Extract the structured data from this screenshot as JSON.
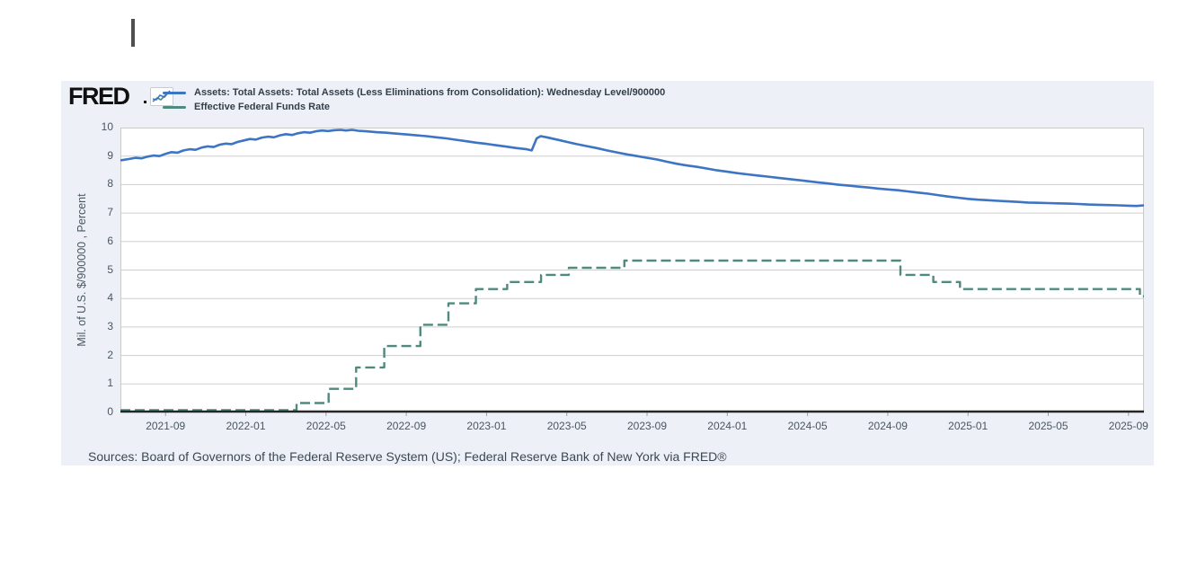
{
  "page": {
    "cursor_visible": true
  },
  "header": {
    "logo_text": "FRED",
    "spark_icon": "fred-sparkline-icon",
    "legend": [
      {
        "label": "Assets: Total Assets: Total Assets (Less Eliminations from Consolidation): Wednesday Level/900000",
        "color": "#3d74c4"
      },
      {
        "label": "Effective Federal Funds Rate",
        "color": "#4e8a7d"
      }
    ]
  },
  "footer": {
    "sources": "Sources: Board of Governors of the Federal Reserve System (US); Federal Reserve Bank of New York via FRED®"
  },
  "colors": {
    "card_background": "#edf1f7",
    "plot_background": "#ffffff",
    "gridline": "#cfcfcf",
    "plot_border": "#c9c9c9",
    "axis": "#262626",
    "assets_line": "#3d74c4",
    "effr_line": "#4e8a7d"
  },
  "chart_data": {
    "type": "line",
    "title": "",
    "xlabel": "",
    "ylabel": "Mil. of U.S. $/900000 , Percent",
    "ylim": [
      0,
      10
    ],
    "yticks": [
      0,
      1,
      2,
      3,
      4,
      5,
      6,
      7,
      8,
      9,
      10
    ],
    "grid": true,
    "legend_position": "top",
    "x_unit": "months since 2021-07-01",
    "xlim_months": [
      -0.25,
      50.77
    ],
    "xticks": [
      {
        "t": 2,
        "label": "2021-09"
      },
      {
        "t": 6,
        "label": "2022-01"
      },
      {
        "t": 10,
        "label": "2022-05"
      },
      {
        "t": 14,
        "label": "2022-09"
      },
      {
        "t": 18,
        "label": "2023-01"
      },
      {
        "t": 22,
        "label": "2023-05"
      },
      {
        "t": 26,
        "label": "2023-09"
      },
      {
        "t": 30,
        "label": "2024-01"
      },
      {
        "t": 34,
        "label": "2024-05"
      },
      {
        "t": 38,
        "label": "2024-09"
      },
      {
        "t": 42,
        "label": "2025-01"
      },
      {
        "t": 46,
        "label": "2025-05"
      },
      {
        "t": 50,
        "label": "2025-09"
      }
    ],
    "series": [
      {
        "name": "Assets: Total Assets: Total Assets (Less Eliminations from Consolidation): Wednesday Level/900000",
        "color": "#3d74c4",
        "style": "solid",
        "interp": "linear",
        "points": [
          [
            -0.25,
            8.85
          ],
          [
            0.2,
            8.9
          ],
          [
            0.5,
            8.94
          ],
          [
            0.8,
            8.92
          ],
          [
            1.1,
            8.98
          ],
          [
            1.4,
            9.02
          ],
          [
            1.7,
            9.0
          ],
          [
            2.0,
            9.08
          ],
          [
            2.3,
            9.14
          ],
          [
            2.6,
            9.12
          ],
          [
            2.9,
            9.2
          ],
          [
            3.2,
            9.24
          ],
          [
            3.5,
            9.22
          ],
          [
            3.8,
            9.3
          ],
          [
            4.1,
            9.34
          ],
          [
            4.4,
            9.32
          ],
          [
            4.7,
            9.4
          ],
          [
            5.0,
            9.44
          ],
          [
            5.3,
            9.42
          ],
          [
            5.6,
            9.5
          ],
          [
            5.9,
            9.55
          ],
          [
            6.2,
            9.6
          ],
          [
            6.5,
            9.58
          ],
          [
            6.8,
            9.65
          ],
          [
            7.1,
            9.68
          ],
          [
            7.4,
            9.66
          ],
          [
            7.7,
            9.73
          ],
          [
            8.0,
            9.77
          ],
          [
            8.3,
            9.74
          ],
          [
            8.6,
            9.8
          ],
          [
            8.9,
            9.84
          ],
          [
            9.2,
            9.82
          ],
          [
            9.5,
            9.87
          ],
          [
            9.8,
            9.9
          ],
          [
            10.1,
            9.88
          ],
          [
            10.4,
            9.91
          ],
          [
            10.7,
            9.92
          ],
          [
            11.0,
            9.9
          ],
          [
            11.3,
            9.92
          ],
          [
            11.6,
            9.89
          ],
          [
            12.0,
            9.87
          ],
          [
            12.5,
            9.84
          ],
          [
            13.0,
            9.82
          ],
          [
            13.5,
            9.79
          ],
          [
            14.0,
            9.76
          ],
          [
            14.5,
            9.73
          ],
          [
            15.0,
            9.7
          ],
          [
            15.5,
            9.66
          ],
          [
            16.0,
            9.62
          ],
          [
            16.5,
            9.57
          ],
          [
            17.0,
            9.52
          ],
          [
            17.5,
            9.47
          ],
          [
            18.0,
            9.43
          ],
          [
            18.5,
            9.38
          ],
          [
            19.0,
            9.33
          ],
          [
            19.5,
            9.28
          ],
          [
            20.0,
            9.24
          ],
          [
            20.25,
            9.2
          ],
          [
            20.5,
            9.62
          ],
          [
            20.7,
            9.7
          ],
          [
            21.0,
            9.66
          ],
          [
            21.5,
            9.58
          ],
          [
            22.0,
            9.5
          ],
          [
            22.5,
            9.42
          ],
          [
            23.0,
            9.35
          ],
          [
            23.5,
            9.28
          ],
          [
            24.0,
            9.2
          ],
          [
            24.5,
            9.13
          ],
          [
            25.0,
            9.06
          ],
          [
            25.5,
            9.0
          ],
          [
            26.0,
            8.94
          ],
          [
            26.5,
            8.88
          ],
          [
            27.0,
            8.8
          ],
          [
            27.5,
            8.73
          ],
          [
            28.0,
            8.67
          ],
          [
            28.5,
            8.62
          ],
          [
            29.0,
            8.56
          ],
          [
            29.5,
            8.5
          ],
          [
            30.0,
            8.45
          ],
          [
            30.5,
            8.4
          ],
          [
            31.0,
            8.36
          ],
          [
            31.5,
            8.32
          ],
          [
            32.0,
            8.28
          ],
          [
            32.5,
            8.24
          ],
          [
            33.0,
            8.2
          ],
          [
            33.5,
            8.16
          ],
          [
            34.0,
            8.12
          ],
          [
            34.5,
            8.08
          ],
          [
            35.0,
            8.04
          ],
          [
            35.5,
            8.0
          ],
          [
            36.0,
            7.97
          ],
          [
            36.5,
            7.93
          ],
          [
            37.0,
            7.9
          ],
          [
            37.5,
            7.86
          ],
          [
            38.0,
            7.83
          ],
          [
            38.5,
            7.8
          ],
          [
            39.0,
            7.76
          ],
          [
            39.5,
            7.72
          ],
          [
            40.0,
            7.68
          ],
          [
            40.5,
            7.63
          ],
          [
            41.0,
            7.58
          ],
          [
            41.5,
            7.54
          ],
          [
            42.0,
            7.5
          ],
          [
            42.5,
            7.47
          ],
          [
            43.0,
            7.45
          ],
          [
            43.5,
            7.43
          ],
          [
            44.0,
            7.41
          ],
          [
            44.5,
            7.39
          ],
          [
            45.0,
            7.37
          ],
          [
            45.5,
            7.36
          ],
          [
            46.0,
            7.35
          ],
          [
            46.5,
            7.34
          ],
          [
            47.0,
            7.33
          ],
          [
            47.5,
            7.32
          ],
          [
            48.0,
            7.3
          ],
          [
            48.5,
            7.29
          ],
          [
            49.0,
            7.28
          ],
          [
            49.5,
            7.27
          ],
          [
            50.0,
            7.26
          ],
          [
            50.4,
            7.25
          ],
          [
            50.77,
            7.27
          ]
        ]
      },
      {
        "name": "Effective Federal Funds Rate",
        "color": "#4e8a7d",
        "style": "dashed",
        "interp": "step",
        "points": [
          [
            -0.25,
            0.08
          ],
          [
            8.53,
            0.33
          ],
          [
            10.13,
            0.83
          ],
          [
            11.5,
            1.58
          ],
          [
            12.9,
            2.33
          ],
          [
            14.7,
            3.08
          ],
          [
            16.1,
            3.83
          ],
          [
            17.47,
            4.33
          ],
          [
            19.03,
            4.58
          ],
          [
            20.72,
            4.83
          ],
          [
            22.1,
            5.08
          ],
          [
            24.87,
            5.33
          ],
          [
            38.63,
            4.83
          ],
          [
            40.27,
            4.58
          ],
          [
            41.6,
            4.33
          ],
          [
            50.57,
            4.08
          ],
          [
            50.77,
            4.08
          ]
        ]
      }
    ]
  }
}
